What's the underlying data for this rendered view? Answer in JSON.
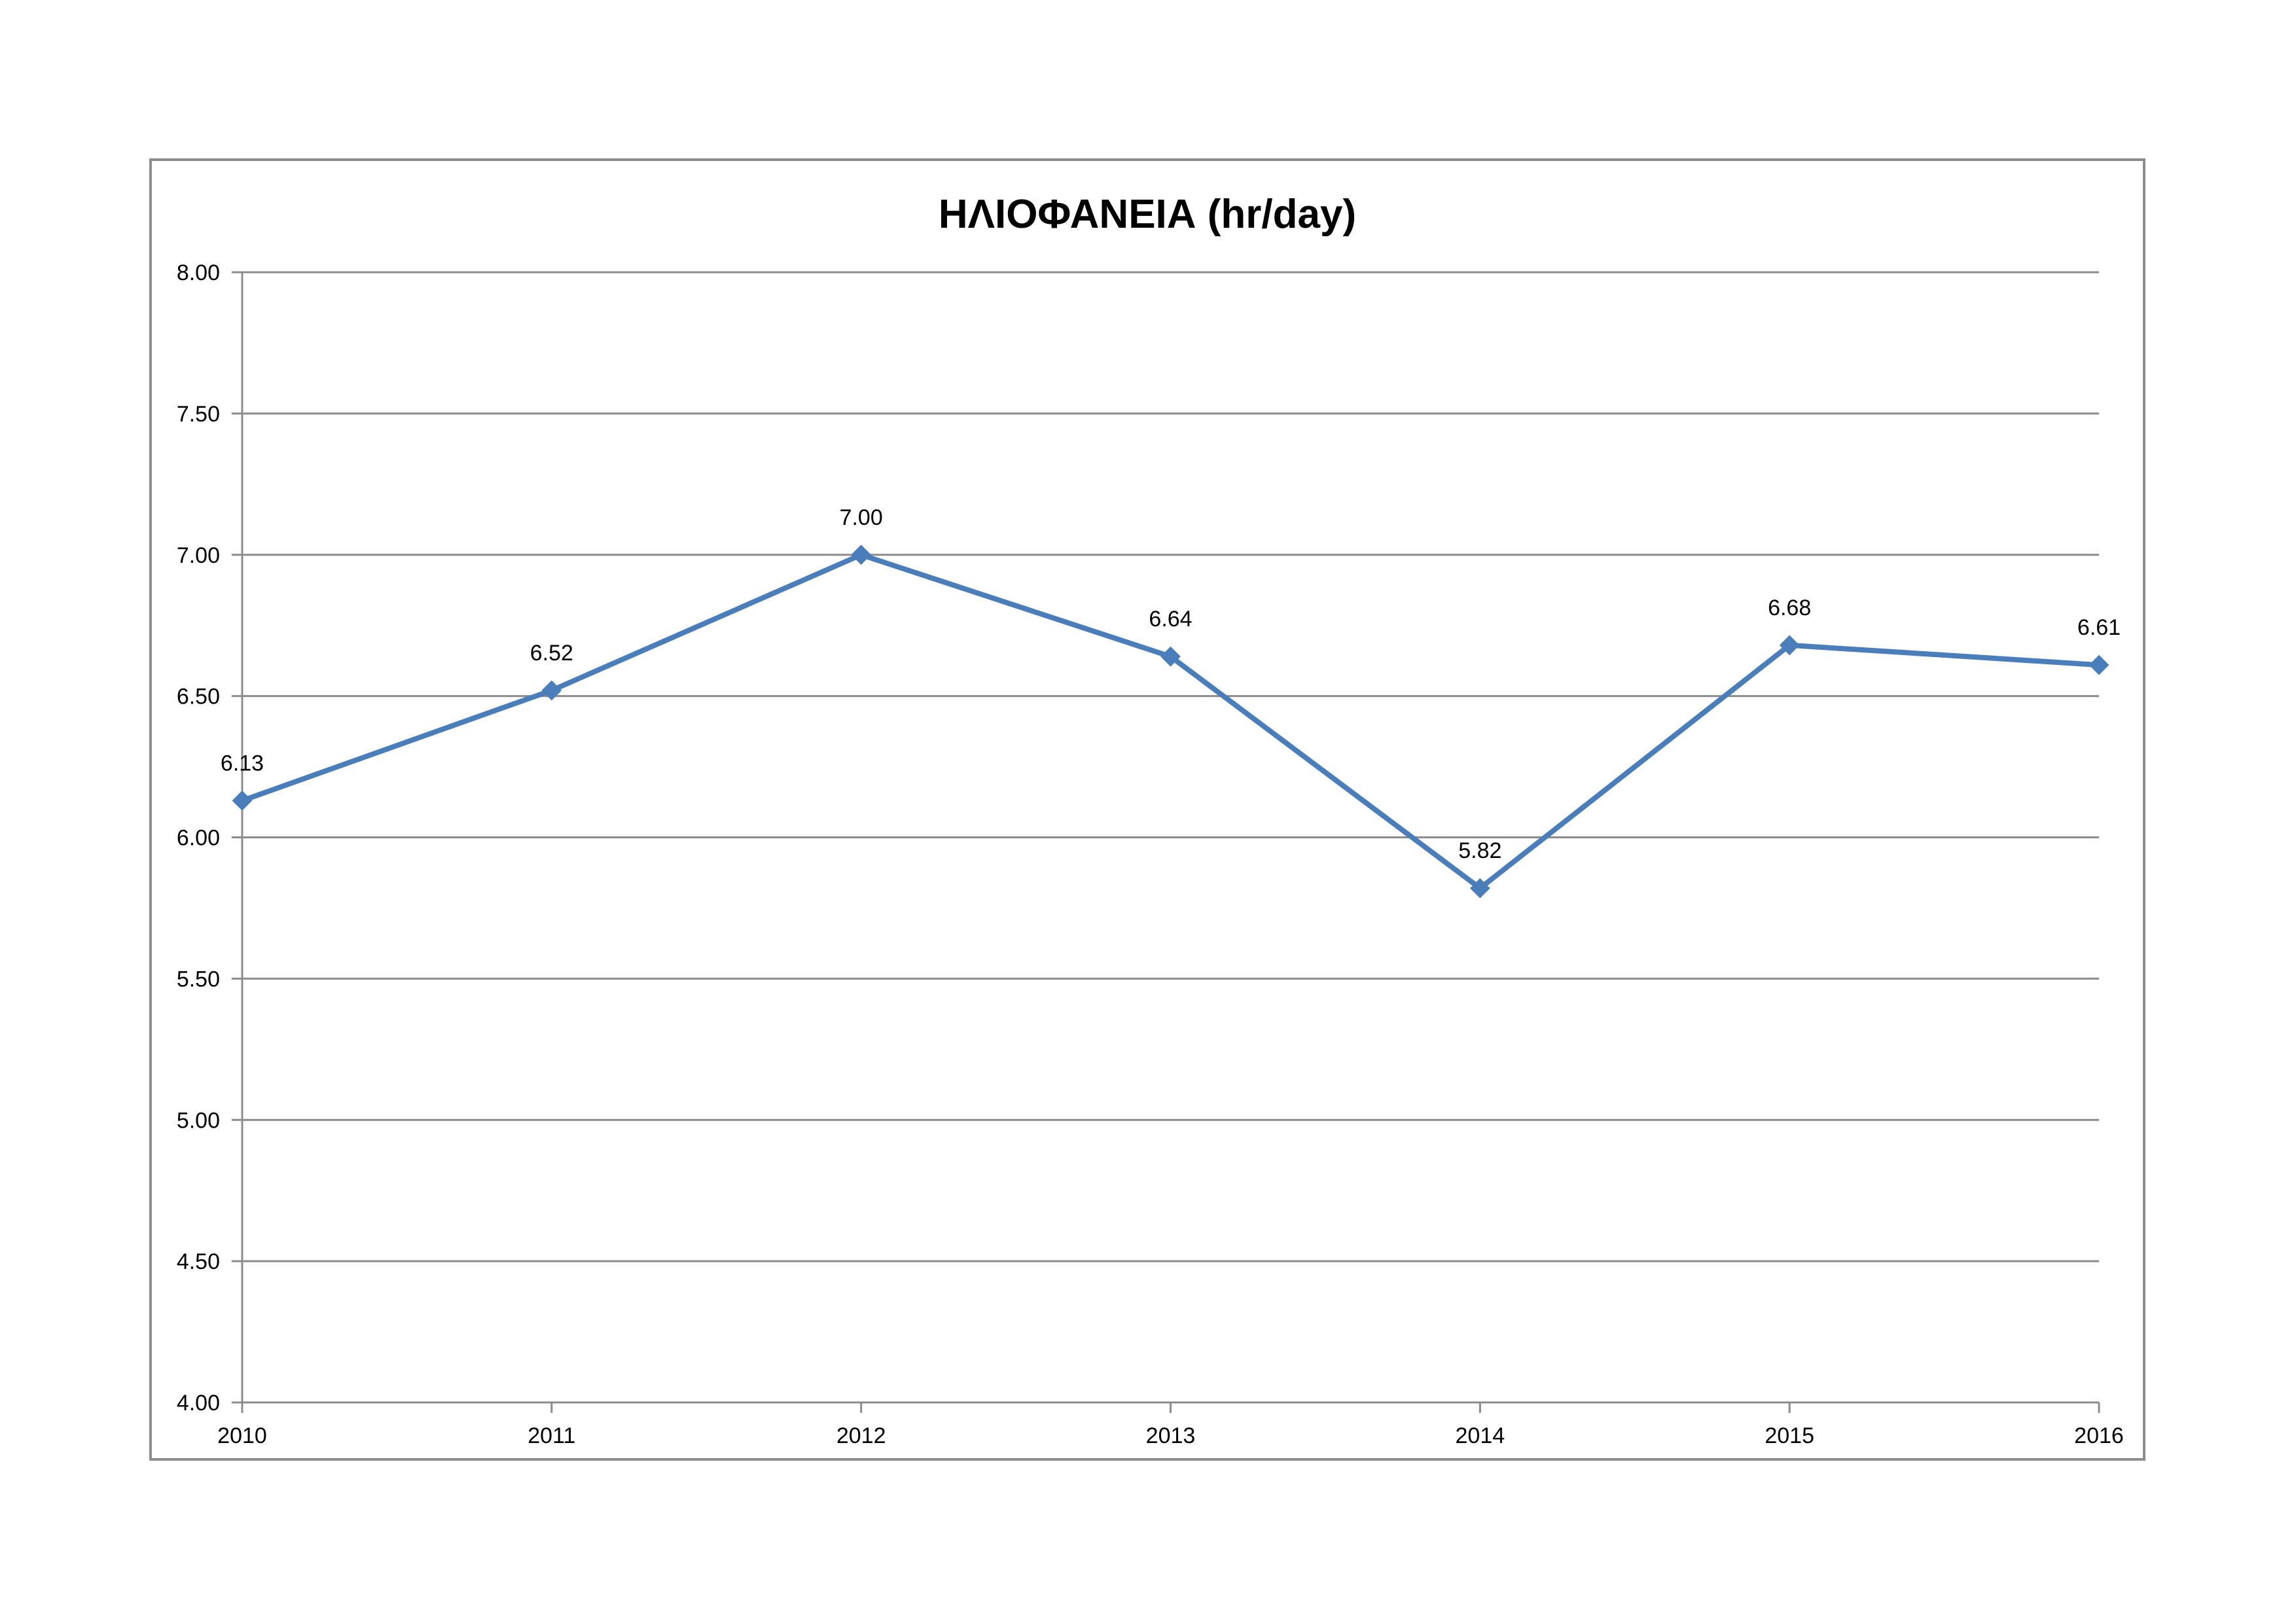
{
  "chart_data": {
    "type": "line",
    "title": "ΗΛΙΟΦΑΝΕΙΑ (hr/day)",
    "xlabel": "",
    "ylabel": "",
    "categories": [
      "2010",
      "2011",
      "2012",
      "2013",
      "2014",
      "2015",
      "2016"
    ],
    "series": [
      {
        "values": [
          6.13,
          6.52,
          7.0,
          6.64,
          5.82,
          6.68,
          6.61
        ],
        "data_labels": [
          "6.13",
          "6.52",
          "7.00",
          "6.64",
          "5.82",
          "6.68",
          "6.61"
        ],
        "color": "#4a7ebb",
        "marker": "diamond"
      }
    ],
    "ylim": [
      4.0,
      8.0
    ],
    "yticks": [
      "4.00",
      "4.50",
      "5.00",
      "5.50",
      "6.00",
      "6.50",
      "7.00",
      "7.50",
      "8.00"
    ],
    "grid": true,
    "legend": "none",
    "colors": {
      "gridline": "#8c8c8c",
      "axis": "#8c8c8c",
      "frame": "#8c8c8c",
      "series": "#4a7ebb"
    }
  }
}
